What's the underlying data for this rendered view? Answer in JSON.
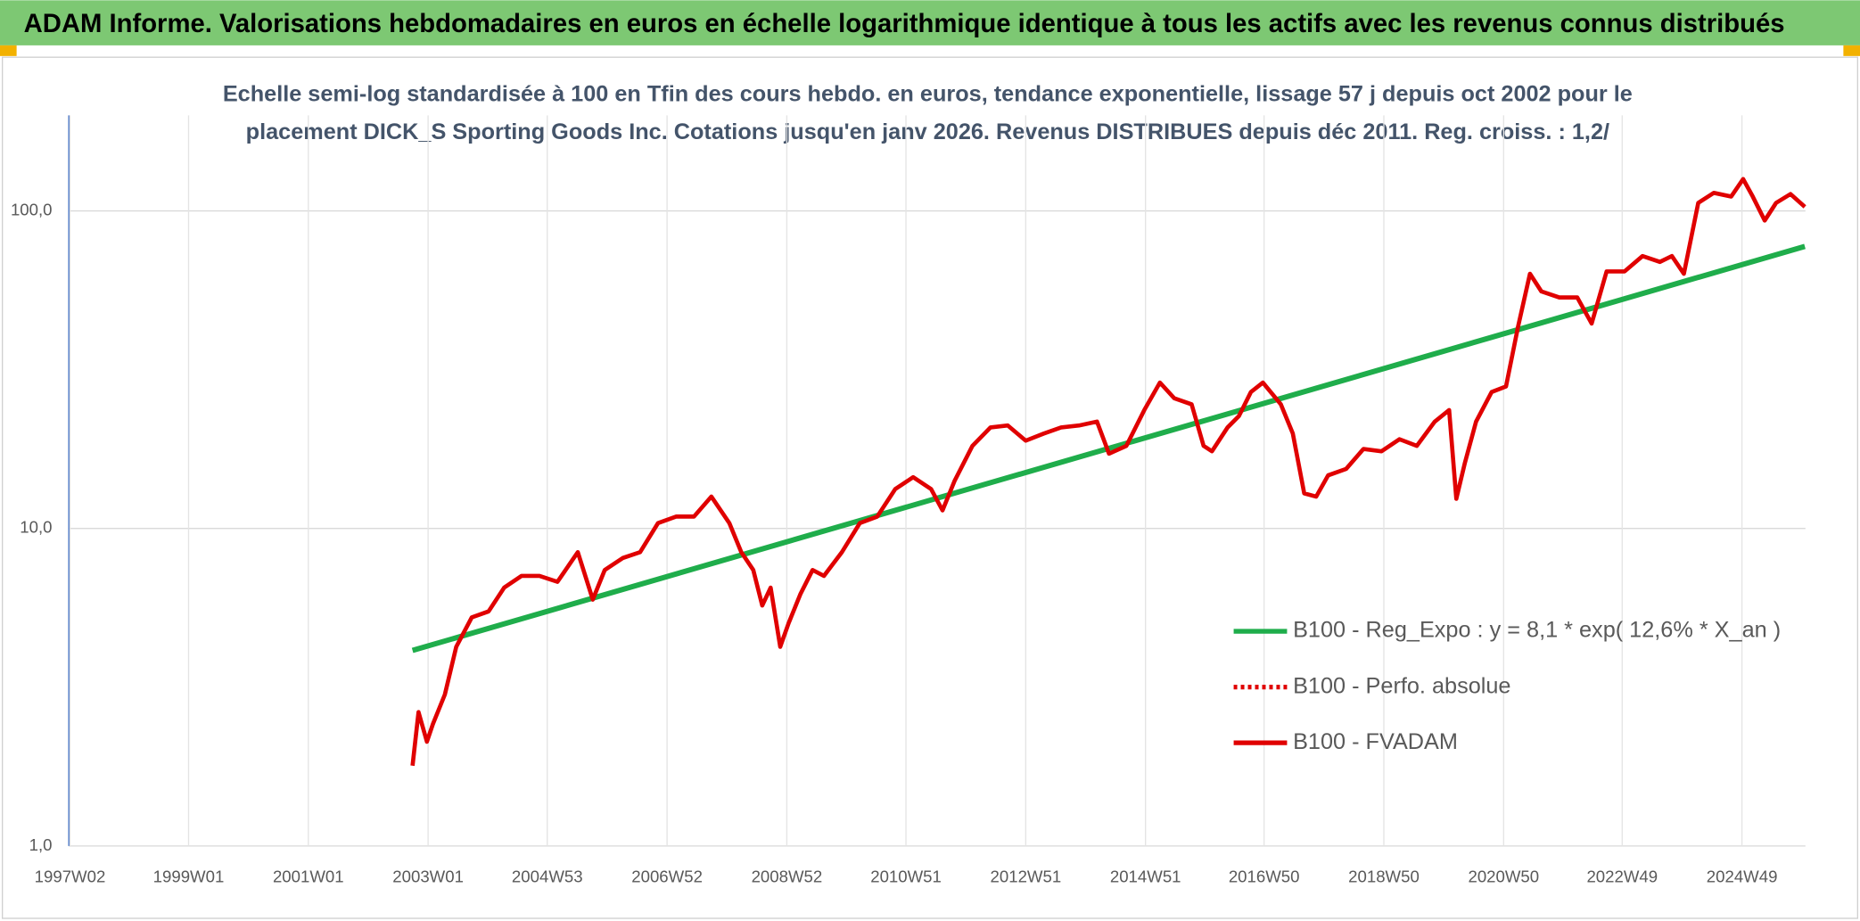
{
  "header": {
    "title": "ADAM Informe. Valorisations hebdomadaires en euros en échelle logarithmique identique à tous les actifs avec les revenus connus distribués"
  },
  "chart_data": {
    "type": "line",
    "title_lines": [
      "Echelle semi-log standardisée à 100 en Tfin des cours hebdo. en euros, tendance exponentielle, lissage 57 j depuis oct 2002 pour le",
      "placement DICK_S Sporting Goods Inc. Cotations jusqu'en janv 2026. Revenus DISTRIBUES depuis déc 2011. Reg. croiss. : 1,2/"
    ],
    "log_y": true,
    "grid": true,
    "legend": "lower right",
    "xlim": [
      1997.0,
      2026.0
    ],
    "xticks": [
      {
        "value": 1997.02,
        "label": "1997W02"
      },
      {
        "value": 1999.0,
        "label": "1999W01"
      },
      {
        "value": 2001.0,
        "label": "2001W01"
      },
      {
        "value": 2003.0,
        "label": "2003W01"
      },
      {
        "value": 2004.99,
        "label": "2004W53"
      },
      {
        "value": 2006.99,
        "label": "2006W52"
      },
      {
        "value": 2008.99,
        "label": "2008W52"
      },
      {
        "value": 2010.98,
        "label": "2010W51"
      },
      {
        "value": 2012.98,
        "label": "2012W51"
      },
      {
        "value": 2014.98,
        "label": "2014W51"
      },
      {
        "value": 2016.96,
        "label": "2016W50"
      },
      {
        "value": 2018.96,
        "label": "2018W50"
      },
      {
        "value": 2020.96,
        "label": "2020W50"
      },
      {
        "value": 2022.94,
        "label": "2022W49"
      },
      {
        "value": 2024.94,
        "label": "2024W49"
      }
    ],
    "ylim": [
      1,
      200
    ],
    "yticks": [
      {
        "value": 1,
        "label": "1,0"
      },
      {
        "value": 10,
        "label": "10,0"
      },
      {
        "value": 100,
        "label": "100,0"
      }
    ],
    "series": [
      {
        "name": "B100 - Reg_Expo : y = 8,1 * exp( 12,6% *  X_an )",
        "color": "#1fad4b",
        "x": [
          2002.74,
          2025.99
        ],
        "values": [
          4.13,
          77.3
        ]
      },
      {
        "name": "B100 - Perfo. absolue",
        "color": "#e00000",
        "dash": "dotted"
      },
      {
        "name": "B100 - FVADAM",
        "color": "#e00000",
        "x": [
          2002.74,
          2002.84,
          2002.98,
          2003.08,
          2003.28,
          2003.47,
          2003.73,
          2004.01,
          2004.27,
          2004.56,
          2004.86,
          2005.16,
          2005.5,
          2005.75,
          2005.95,
          2006.25,
          2006.54,
          2006.84,
          2007.14,
          2007.44,
          2007.73,
          2008.03,
          2008.23,
          2008.43,
          2008.58,
          2008.72,
          2008.88,
          2009.02,
          2009.22,
          2009.42,
          2009.61,
          2009.91,
          2010.21,
          2010.5,
          2010.8,
          2011.1,
          2011.4,
          2011.59,
          2011.79,
          2012.09,
          2012.39,
          2012.68,
          2012.98,
          2013.28,
          2013.57,
          2013.87,
          2014.17,
          2014.37,
          2014.66,
          2014.96,
          2015.22,
          2015.46,
          2015.75,
          2015.95,
          2016.09,
          2016.35,
          2016.54,
          2016.74,
          2016.94,
          2017.24,
          2017.44,
          2017.63,
          2017.83,
          2018.03,
          2018.33,
          2018.62,
          2018.92,
          2019.22,
          2019.51,
          2019.81,
          2020.05,
          2020.17,
          2020.31,
          2020.5,
          2020.76,
          2021.0,
          2021.2,
          2021.4,
          2021.59,
          2021.89,
          2022.19,
          2022.43,
          2022.68,
          2022.98,
          2023.28,
          2023.57,
          2023.77,
          2023.97,
          2024.21,
          2024.47,
          2024.76,
          2024.96,
          2025.12,
          2025.32,
          2025.51,
          2025.75,
          2025.99
        ],
        "values": [
          1.79,
          2.64,
          2.13,
          2.42,
          3.0,
          4.24,
          5.25,
          5.48,
          6.51,
          7.09,
          7.09,
          6.79,
          8.42,
          5.97,
          7.4,
          8.07,
          8.42,
          10.4,
          10.9,
          10.9,
          12.6,
          10.4,
          8.42,
          7.4,
          5.72,
          6.51,
          4.24,
          5.03,
          6.23,
          7.4,
          7.09,
          8.42,
          10.4,
          10.9,
          13.3,
          14.5,
          13.3,
          11.4,
          14.1,
          18.2,
          20.8,
          21.1,
          18.9,
          19.9,
          20.8,
          21.1,
          21.7,
          17.2,
          18.2,
          23.6,
          28.8,
          25.7,
          24.6,
          18.2,
          17.5,
          20.8,
          22.6,
          26.9,
          28.8,
          24.6,
          19.9,
          12.9,
          12.6,
          14.7,
          15.4,
          17.8,
          17.5,
          19.1,
          18.2,
          21.7,
          23.6,
          12.4,
          16.0,
          21.7,
          26.9,
          28.0,
          43.1,
          63.4,
          55.8,
          53.4,
          53.4,
          44.2,
          64.5,
          64.5,
          72.1,
          69.1,
          72.1,
          63.4,
          106,
          114,
          111,
          126,
          111,
          93.3,
          106,
          113,
          103
        ]
      }
    ]
  }
}
